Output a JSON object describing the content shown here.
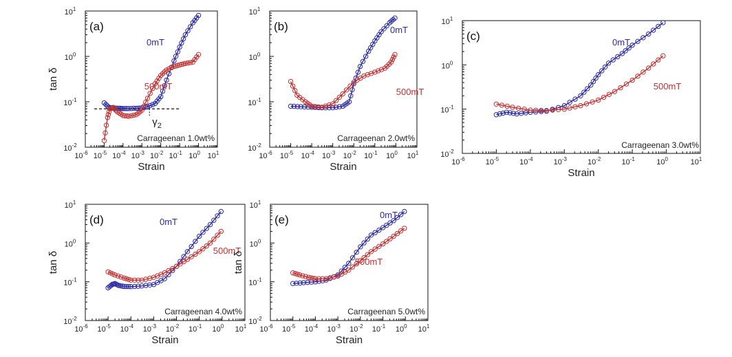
{
  "chart_data": [
    {
      "type": "scatter",
      "panel_label": "(a)",
      "xlabel": "Strain",
      "ylabel": "tan δ",
      "xscale": "log",
      "yscale": "log",
      "xlim_exp": [
        -6,
        1
      ],
      "ylim_exp": [
        -2,
        1
      ],
      "x_tick_exponents": [
        "-6",
        "-5",
        "-4",
        "-3",
        "-2",
        "-1",
        "0",
        "1"
      ],
      "y_tick_exponents": [
        "-2",
        "-1",
        "0",
        "1"
      ],
      "caption": "Carrageenan 1.0wt%",
      "annotation": {
        "label": "γ",
        "subscript": "2",
        "dashed_line_y": 0.07,
        "dashed_line_x_range": [
          3e-06,
          0.1
        ],
        "marker_x": 0.0025
      },
      "series": [
        {
          "name": "0mT",
          "color": "#2a2aa0",
          "x": [
            1e-05,
            1.8e-05,
            3e-05,
            6e-05,
            0.0001,
            0.0002,
            0.0005,
            0.001,
            0.002,
            0.005,
            0.01,
            0.02,
            0.05,
            0.1,
            0.2,
            0.5,
            1.0
          ],
          "y": [
            0.095,
            0.075,
            0.073,
            0.072,
            0.071,
            0.071,
            0.072,
            0.073,
            0.078,
            0.092,
            0.13,
            0.3,
            0.8,
            1.6,
            3.0,
            5.5,
            8.0
          ]
        },
        {
          "name": "500mT",
          "color": "#c03030",
          "x": [
            1e-05,
            1.5e-05,
            2e-05,
            3e-05,
            5e-05,
            0.0001,
            0.0002,
            0.0005,
            0.001,
            0.002,
            0.005,
            0.01,
            0.02,
            0.05,
            0.1,
            0.2,
            0.5,
            1.0
          ],
          "y": [
            0.014,
            0.045,
            0.07,
            0.075,
            0.06,
            0.05,
            0.048,
            0.052,
            0.065,
            0.12,
            0.25,
            0.38,
            0.5,
            0.6,
            0.65,
            0.7,
            0.75,
            1.1
          ]
        }
      ]
    },
    {
      "type": "scatter",
      "panel_label": "(b)",
      "xlabel": "Strain",
      "ylabel": "",
      "xscale": "log",
      "yscale": "log",
      "xlim_exp": [
        -6,
        1
      ],
      "ylim_exp": [
        -2,
        1
      ],
      "x_tick_exponents": [
        "-6",
        "-5",
        "-4",
        "-3",
        "-2",
        "-1",
        "0",
        "1"
      ],
      "y_tick_exponents": [
        "-2",
        "-1",
        "0",
        "1"
      ],
      "caption": "Carrageenan 2.0wt%",
      "series": [
        {
          "name": "0mT",
          "color": "#2a2aa0",
          "x": [
            1e-05,
            3e-05,
            0.0001,
            0.0003,
            0.001,
            0.003,
            0.006,
            0.01,
            0.02,
            0.05,
            0.1,
            0.2,
            0.5,
            0.9
          ],
          "y": [
            0.08,
            0.078,
            0.076,
            0.074,
            0.074,
            0.08,
            0.1,
            0.25,
            0.6,
            1.3,
            2.2,
            3.5,
            5.5,
            7.0
          ]
        },
        {
          "name": "500mT",
          "color": "#c03030",
          "x": [
            1e-05,
            2e-05,
            5e-05,
            0.0001,
            0.0003,
            0.001,
            0.003,
            0.01,
            0.03,
            0.1,
            0.3,
            0.6,
            0.9
          ],
          "y": [
            0.28,
            0.14,
            0.1,
            0.08,
            0.076,
            0.09,
            0.15,
            0.27,
            0.37,
            0.45,
            0.55,
            0.75,
            1.1
          ]
        }
      ]
    },
    {
      "type": "scatter",
      "panel_label": "(c)",
      "xlabel": "Strain",
      "ylabel": "",
      "xscale": "log",
      "yscale": "log",
      "xlim_exp": [
        -6,
        1
      ],
      "ylim_exp": [
        -2,
        1
      ],
      "x_tick_exponents": [
        "-6",
        "-5",
        "-4",
        "-3",
        "-2",
        "-1",
        "0",
        "1"
      ],
      "y_tick_exponents": [
        "-2",
        "-1",
        "0",
        "1"
      ],
      "caption": "Carrageenan 3.0wt%",
      "series": [
        {
          "name": "0mT",
          "color": "#2a2aa0",
          "x": [
            1e-05,
            2e-05,
            4e-05,
            0.0001,
            0.0003,
            0.001,
            0.003,
            0.006,
            0.01,
            0.02,
            0.05,
            0.1,
            0.3,
            0.8
          ],
          "y": [
            0.075,
            0.085,
            0.078,
            0.085,
            0.09,
            0.12,
            0.2,
            0.35,
            0.6,
            1.1,
            1.8,
            2.8,
            5.0,
            9.0
          ]
        },
        {
          "name": "500mT",
          "color": "#c03030",
          "x": [
            1e-05,
            3e-05,
            0.0001,
            0.0003,
            0.001,
            0.003,
            0.01,
            0.03,
            0.1,
            0.3,
            0.8
          ],
          "y": [
            0.13,
            0.11,
            0.095,
            0.093,
            0.1,
            0.12,
            0.16,
            0.25,
            0.45,
            0.85,
            1.6
          ]
        }
      ]
    },
    {
      "type": "scatter",
      "panel_label": "(d)",
      "xlabel": "Strain",
      "ylabel": "tan δ",
      "xscale": "log",
      "yscale": "log",
      "xlim_exp": [
        -6,
        1
      ],
      "ylim_exp": [
        -2,
        1
      ],
      "x_tick_exponents": [
        "-6",
        "-5",
        "-4",
        "-3",
        "-2",
        "-1",
        "0",
        "1"
      ],
      "y_tick_exponents": [
        "-2",
        "-1",
        "0",
        "1"
      ],
      "caption": "Carrageenan 4.0wt%",
      "series": [
        {
          "name": "0mT",
          "color": "#2a2aa0",
          "x": [
            1e-05,
            1.5e-05,
            2e-05,
            3e-05,
            5e-05,
            0.0001,
            0.0003,
            0.001,
            0.003,
            0.01,
            0.03,
            0.1,
            0.3,
            0.9
          ],
          "y": [
            0.07,
            0.085,
            0.09,
            0.08,
            0.076,
            0.075,
            0.078,
            0.085,
            0.12,
            0.25,
            0.6,
            1.5,
            3.0,
            6.5
          ]
        },
        {
          "name": "500mT",
          "color": "#c03030",
          "x": [
            1e-05,
            2e-05,
            5e-05,
            0.0001,
            0.0003,
            0.001,
            0.003,
            0.01,
            0.03,
            0.1,
            0.3,
            0.9
          ],
          "y": [
            0.18,
            0.15,
            0.125,
            0.11,
            0.11,
            0.13,
            0.17,
            0.25,
            0.38,
            0.6,
            1.0,
            2.0
          ]
        }
      ]
    },
    {
      "type": "scatter",
      "panel_label": "(e)",
      "xlabel": "Strain",
      "ylabel": "tan δ",
      "xscale": "log",
      "yscale": "log",
      "xlim_exp": [
        -6,
        1
      ],
      "ylim_exp": [
        -2,
        1
      ],
      "x_tick_exponents": [
        "-6",
        "-5",
        "-4",
        "-3",
        "-2",
        "-1",
        "0",
        "1"
      ],
      "y_tick_exponents": [
        "-2",
        "-1",
        "0",
        "1"
      ],
      "caption": "Carrageenan 5.0wt%",
      "series": [
        {
          "name": "0mT",
          "color": "#2a2aa0",
          "x": [
            1e-05,
            3e-05,
            0.0001,
            0.0003,
            0.001,
            0.003,
            0.01,
            0.03,
            0.1,
            0.3,
            0.9
          ],
          "y": [
            0.09,
            0.095,
            0.1,
            0.11,
            0.15,
            0.3,
            0.8,
            1.6,
            2.5,
            3.8,
            6.5
          ]
        },
        {
          "name": "500mT",
          "color": "#c03030",
          "x": [
            1e-05,
            2e-05,
            5e-05,
            0.0001,
            0.0003,
            0.001,
            0.003,
            0.01,
            0.03,
            0.1,
            0.3,
            0.9
          ],
          "y": [
            0.17,
            0.15,
            0.13,
            0.12,
            0.12,
            0.14,
            0.2,
            0.35,
            0.6,
            0.95,
            1.5,
            2.4
          ]
        }
      ]
    }
  ]
}
